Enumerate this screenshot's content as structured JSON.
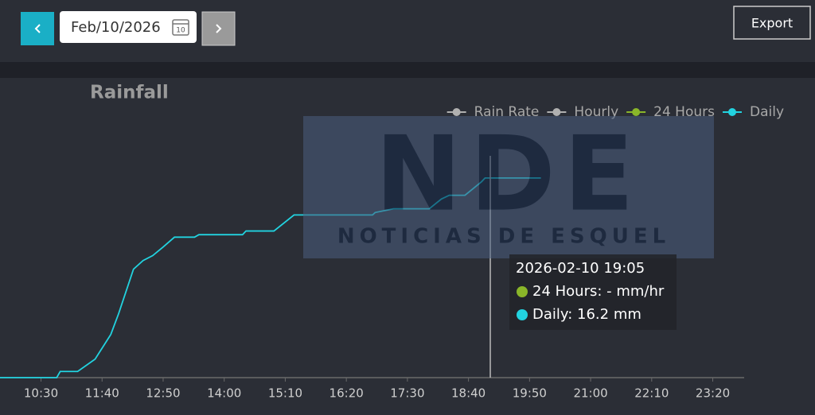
{
  "toolbar": {
    "date": "Feb/10/2026",
    "calendar_day": "10",
    "export": "Export"
  },
  "watermark": {
    "logo": "NDE",
    "caption": "NOTICIAS DE ESQUEL"
  },
  "chart_data": {
    "type": "line",
    "title": "Rainfall",
    "x": [
      "09:43",
      "10:48",
      "10:52",
      "11:12",
      "11:32",
      "11:41",
      "11:50",
      "11:59",
      "12:16",
      "12:27",
      "12:38",
      "12:50",
      "13:03",
      "13:26",
      "13:31",
      "14:21",
      "14:25",
      "14:57",
      "15:20",
      "16:50",
      "16:53",
      "17:14",
      "17:55",
      "18:09",
      "18:18",
      "18:36",
      "18:55",
      "18:59",
      "20:03"
    ],
    "xlim": [
      "09:43",
      "23:56"
    ],
    "xticks": [
      "10:30",
      "11:40",
      "12:50",
      "14:00",
      "15:10",
      "16:20",
      "17:30",
      "18:40",
      "19:50",
      "21:00",
      "22:10",
      "23:20"
    ],
    "ylim": [
      0,
      22
    ],
    "series": [
      {
        "name": "Rain Rate",
        "color": "#b0b0b0",
        "values": [
          null,
          null,
          null,
          null,
          null,
          null,
          null,
          null,
          null,
          null,
          null,
          null,
          null,
          null,
          null,
          null,
          null,
          null,
          null,
          null,
          null,
          null,
          null,
          null,
          null,
          null,
          null,
          null,
          null
        ]
      },
      {
        "name": "Hourly",
        "color": "#b0b0b0",
        "values": [
          null,
          null,
          null,
          null,
          null,
          null,
          null,
          null,
          null,
          null,
          null,
          null,
          null,
          null,
          null,
          null,
          null,
          null,
          null,
          null,
          null,
          null,
          null,
          null,
          null,
          null,
          null,
          null,
          null
        ]
      },
      {
        "name": "24 Hours",
        "color": "#8ab629",
        "values": [
          null,
          null,
          null,
          null,
          null,
          null,
          null,
          null,
          null,
          null,
          null,
          null,
          null,
          null,
          null,
          null,
          null,
          null,
          null,
          null,
          null,
          null,
          null,
          null,
          null,
          null,
          null,
          null,
          null
        ]
      },
      {
        "name": "Daily",
        "color": "#22d3e0",
        "values": [
          0,
          0,
          0.5,
          0.5,
          1.5,
          2.5,
          3.5,
          5.2,
          8.8,
          9.5,
          9.9,
          10.6,
          11.4,
          11.4,
          11.6,
          11.6,
          11.9,
          11.9,
          13.2,
          13.2,
          13.4,
          13.7,
          13.7,
          14.5,
          14.8,
          14.8,
          15.9,
          16.2,
          16.2
        ]
      }
    ],
    "tooltip": {
      "title": "2026-02-10 19:05",
      "items": [
        "24 Hours: - mm/hr",
        "Daily: 16.2 mm"
      ],
      "item_series": [
        2,
        3
      ]
    }
  }
}
